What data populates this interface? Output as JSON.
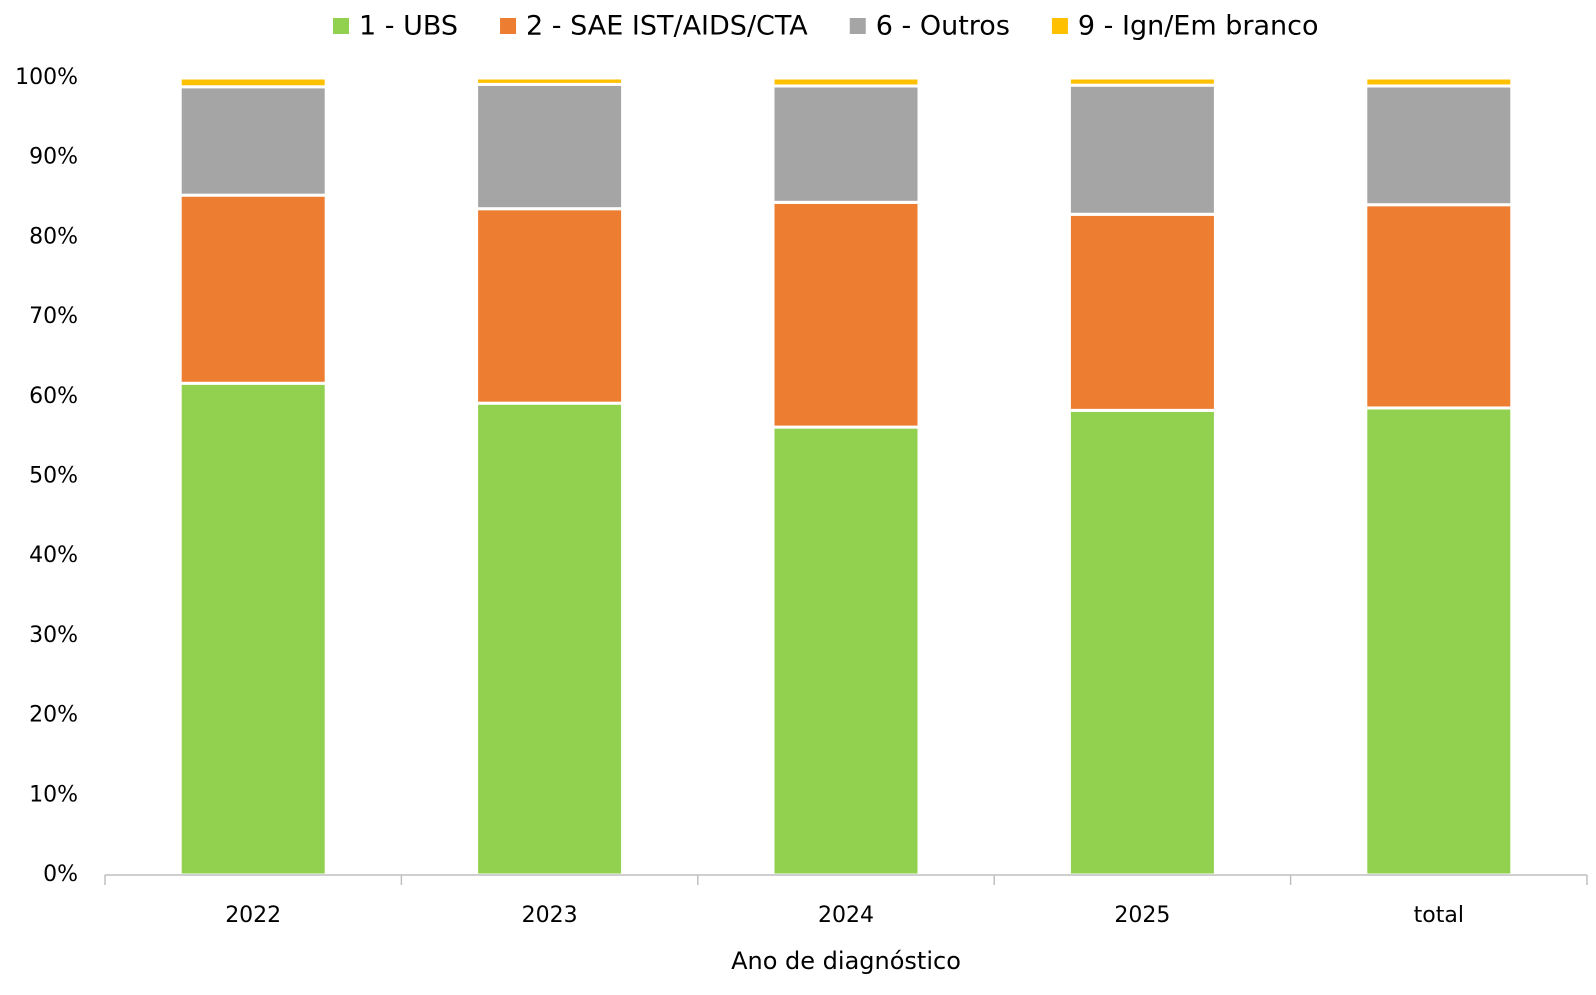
{
  "chart_data": {
    "type": "stacked_bar",
    "x_label": "Ano de diagnóstico",
    "categories": [
      "2022",
      "2023",
      "2024",
      "2025",
      "total"
    ],
    "series": [
      {
        "name": "1 - UBS",
        "color": "#92d050",
        "values": [
          61.7,
          59.2,
          56.2,
          58.3,
          58.6
        ]
      },
      {
        "name": "2 - SAE IST/AIDS/CTA",
        "color": "#ed7d31",
        "values": [
          23.6,
          24.4,
          28.2,
          24.6,
          25.5
        ]
      },
      {
        "name": "6 - Outros",
        "color": "#a5a5a5",
        "values": [
          13.6,
          15.6,
          14.6,
          16.2,
          14.9
        ]
      },
      {
        "name": "9 - Ign/Em branco",
        "color": "#ffc000",
        "values": [
          1.1,
          0.8,
          1.0,
          0.9,
          1.0
        ]
      }
    ],
    "ylim": [
      0,
      100
    ],
    "yticks": [
      {
        "value": 0,
        "label": "0%"
      },
      {
        "value": 10,
        "label": "10%"
      },
      {
        "value": 20,
        "label": "20%"
      },
      {
        "value": 30,
        "label": "30%"
      },
      {
        "value": 40,
        "label": "40%"
      },
      {
        "value": 50,
        "label": "50%"
      },
      {
        "value": 60,
        "label": "60%"
      },
      {
        "value": 70,
        "label": "70%"
      },
      {
        "value": 80,
        "label": "80%"
      },
      {
        "value": 90,
        "label": "90%"
      },
      {
        "value": 100,
        "label": "100%"
      }
    ],
    "legend": "top",
    "grid": false
  }
}
